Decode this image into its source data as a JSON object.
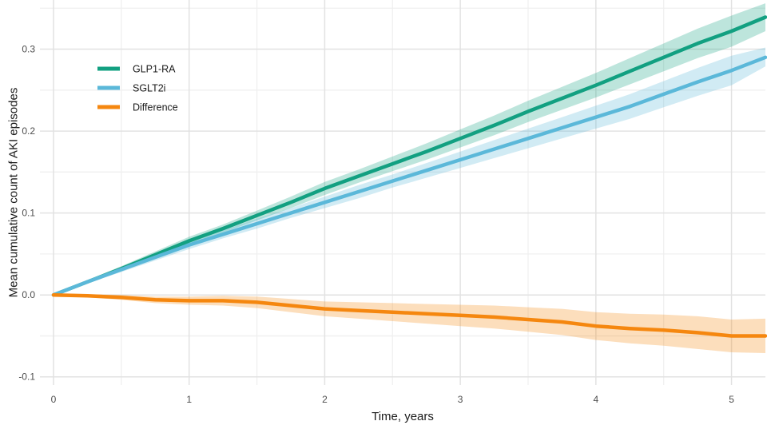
{
  "chart_data": {
    "type": "line",
    "xlabel": "Time, years",
    "ylabel": "Mean cumulative count of AKI episodes",
    "xlim": [
      -0.1,
      5.25
    ],
    "ylim": [
      -0.11,
      0.36
    ],
    "x_ticks": [
      0,
      1,
      2,
      3,
      4,
      5
    ],
    "x_tick_labels": [
      "0",
      "1",
      "2",
      "3",
      "4",
      "5"
    ],
    "y_ticks": [
      -0.1,
      0.0,
      0.1,
      0.2,
      0.3
    ],
    "y_tick_labels": [
      "-0.1",
      "0.0",
      "0.1",
      "0.2",
      "0.3"
    ],
    "grid": true,
    "legend_position": "top-left",
    "series": [
      {
        "name": "GLP1-RA",
        "color": "#12a081",
        "x": [
          0,
          0.25,
          0.5,
          0.75,
          1.0,
          1.25,
          1.5,
          1.75,
          2.0,
          2.25,
          2.5,
          2.75,
          3.0,
          3.25,
          3.5,
          3.75,
          4.0,
          4.25,
          4.5,
          4.75,
          5.0,
          5.25
        ],
        "y": [
          0,
          0.016,
          0.032,
          0.049,
          0.066,
          0.081,
          0.097,
          0.113,
          0.13,
          0.145,
          0.16,
          0.175,
          0.191,
          0.207,
          0.224,
          0.24,
          0.256,
          0.273,
          0.29,
          0.307,
          0.322,
          0.339
        ],
        "lower": [
          0,
          0.014,
          0.029,
          0.045,
          0.061,
          0.076,
          0.091,
          0.106,
          0.122,
          0.137,
          0.151,
          0.165,
          0.18,
          0.195,
          0.211,
          0.226,
          0.241,
          0.257,
          0.273,
          0.289,
          0.303,
          0.322
        ],
        "upper": [
          0,
          0.018,
          0.035,
          0.053,
          0.071,
          0.086,
          0.103,
          0.12,
          0.138,
          0.153,
          0.169,
          0.185,
          0.202,
          0.219,
          0.237,
          0.254,
          0.271,
          0.289,
          0.307,
          0.325,
          0.341,
          0.356
        ]
      },
      {
        "name": "SGLT2i",
        "color": "#5bb8d9",
        "x": [
          0,
          0.25,
          0.5,
          0.75,
          1.0,
          1.25,
          1.5,
          1.75,
          2.0,
          2.25,
          2.5,
          2.75,
          3.0,
          3.25,
          3.5,
          3.75,
          4.0,
          4.25,
          4.5,
          4.75,
          5.0,
          5.25
        ],
        "y": [
          0,
          0.016,
          0.031,
          0.046,
          0.061,
          0.074,
          0.087,
          0.1,
          0.113,
          0.126,
          0.139,
          0.152,
          0.165,
          0.178,
          0.191,
          0.204,
          0.217,
          0.23,
          0.245,
          0.26,
          0.274,
          0.29
        ],
        "lower": [
          0,
          0.014,
          0.028,
          0.042,
          0.056,
          0.069,
          0.081,
          0.094,
          0.106,
          0.118,
          0.131,
          0.143,
          0.155,
          0.167,
          0.179,
          0.191,
          0.203,
          0.215,
          0.229,
          0.243,
          0.256,
          0.279
        ],
        "upper": [
          0,
          0.018,
          0.034,
          0.05,
          0.066,
          0.079,
          0.093,
          0.106,
          0.12,
          0.134,
          0.147,
          0.161,
          0.175,
          0.189,
          0.203,
          0.217,
          0.231,
          0.245,
          0.261,
          0.277,
          0.292,
          0.302
        ]
      },
      {
        "name": "Difference",
        "color": "#f5870f",
        "x": [
          0,
          0.25,
          0.5,
          0.75,
          1.0,
          1.25,
          1.5,
          1.75,
          2.0,
          2.25,
          2.5,
          2.75,
          3.0,
          3.25,
          3.5,
          3.75,
          4.0,
          4.25,
          4.5,
          4.75,
          5.0,
          5.25
        ],
        "y": [
          0,
          -0.001,
          -0.003,
          -0.006,
          -0.007,
          -0.007,
          -0.009,
          -0.013,
          -0.017,
          -0.019,
          -0.021,
          -0.023,
          -0.025,
          -0.027,
          -0.03,
          -0.033,
          -0.038,
          -0.041,
          -0.043,
          -0.046,
          -0.05,
          -0.05
        ],
        "lower": [
          0,
          -0.003,
          -0.006,
          -0.01,
          -0.012,
          -0.013,
          -0.016,
          -0.021,
          -0.026,
          -0.029,
          -0.032,
          -0.035,
          -0.038,
          -0.041,
          -0.045,
          -0.049,
          -0.055,
          -0.059,
          -0.062,
          -0.066,
          -0.07,
          -0.071
        ],
        "upper": [
          0,
          0.001,
          0.0,
          -0.002,
          -0.002,
          -0.001,
          -0.002,
          -0.005,
          -0.008,
          -0.009,
          -0.01,
          -0.011,
          -0.012,
          -0.013,
          -0.015,
          -0.017,
          -0.021,
          -0.023,
          -0.024,
          -0.026,
          -0.03,
          -0.029
        ]
      }
    ]
  }
}
